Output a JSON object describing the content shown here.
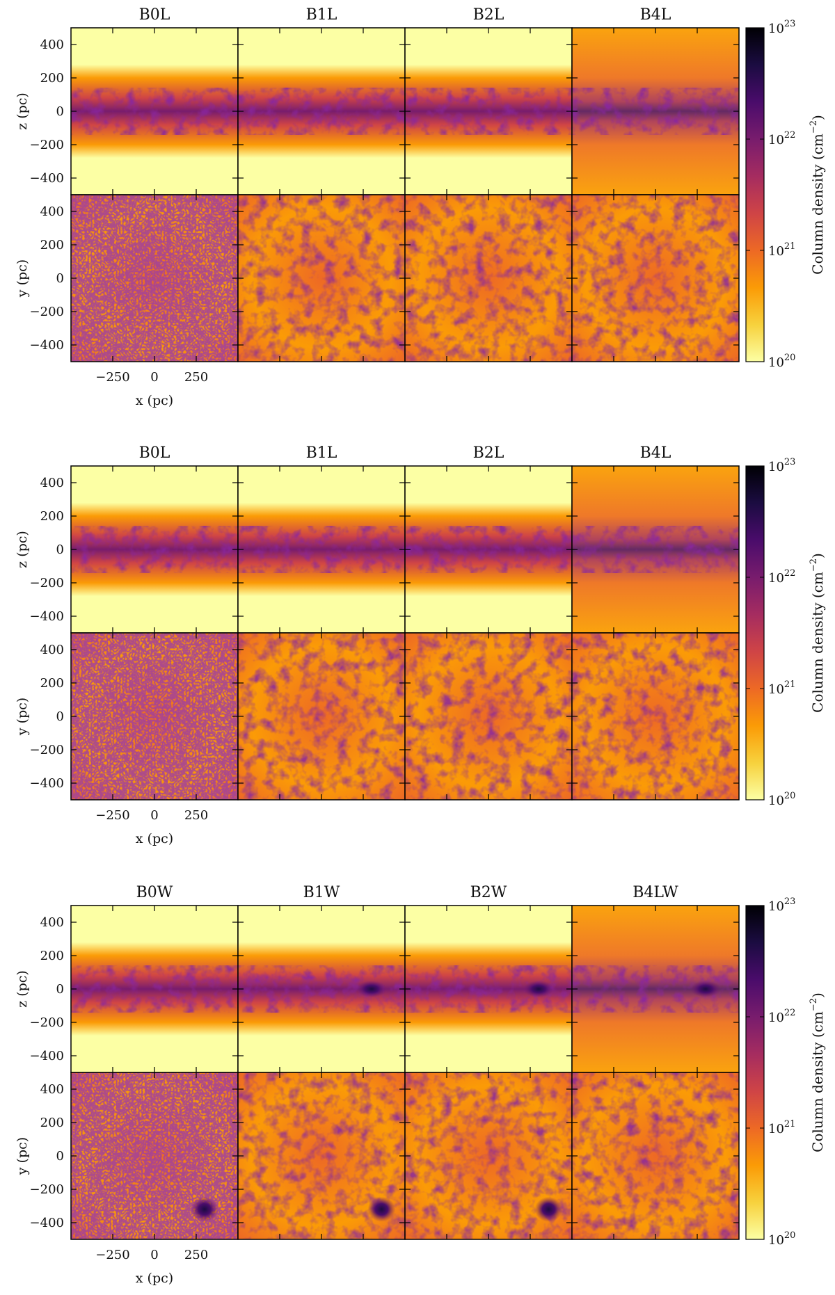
{
  "figure": {
    "panel_sets": [
      {
        "titles": [
          "B0L",
          "B1L",
          "B2L",
          "B4L"
        ],
        "top_ylabel": "z (pc)",
        "bottom_ylabel": "y (pc)",
        "xlabel": "x (pc)",
        "colorbar_label": "Column density (cm",
        "colorbar_label_exp": "−2",
        "colorbar_label_close": ")"
      },
      {
        "titles": [
          "B0L",
          "B1L",
          "B2L",
          "B4L"
        ],
        "top_ylabel": "z (pc)",
        "bottom_ylabel": "y (pc)",
        "xlabel": "x (pc)",
        "colorbar_label": "Column density (cm",
        "colorbar_label_exp": "−2",
        "colorbar_label_close": ")"
      },
      {
        "titles": [
          "B0W",
          "B1W",
          "B2W",
          "B4LW"
        ],
        "top_ylabel": "z (pc)",
        "bottom_ylabel": "y (pc)",
        "xlabel": "x (pc)",
        "colorbar_label": "Column density (cm",
        "colorbar_label_exp": "−2",
        "colorbar_label_close": ")"
      }
    ],
    "z_ticks": [
      "400",
      "200",
      "0",
      "−200",
      "−400"
    ],
    "y_ticks": [
      "400",
      "200",
      "0",
      "−200",
      "−400"
    ],
    "x_ticks": [
      "−250",
      "0",
      "250"
    ],
    "colorbar_ticks": [
      {
        "base": "10",
        "exp": "23"
      },
      {
        "base": "10",
        "exp": "22"
      },
      {
        "base": "10",
        "exp": "21"
      },
      {
        "base": "10",
        "exp": "20"
      }
    ],
    "colormap": [
      "#fcffa4",
      "#f7d13d",
      "#fb9b06",
      "#ed6925",
      "#cf4446",
      "#a52c60",
      "#781c6d",
      "#4a0c6b",
      "#1b0c41",
      "#000004"
    ],
    "axis_range_pc": [
      -500,
      500
    ]
  }
}
